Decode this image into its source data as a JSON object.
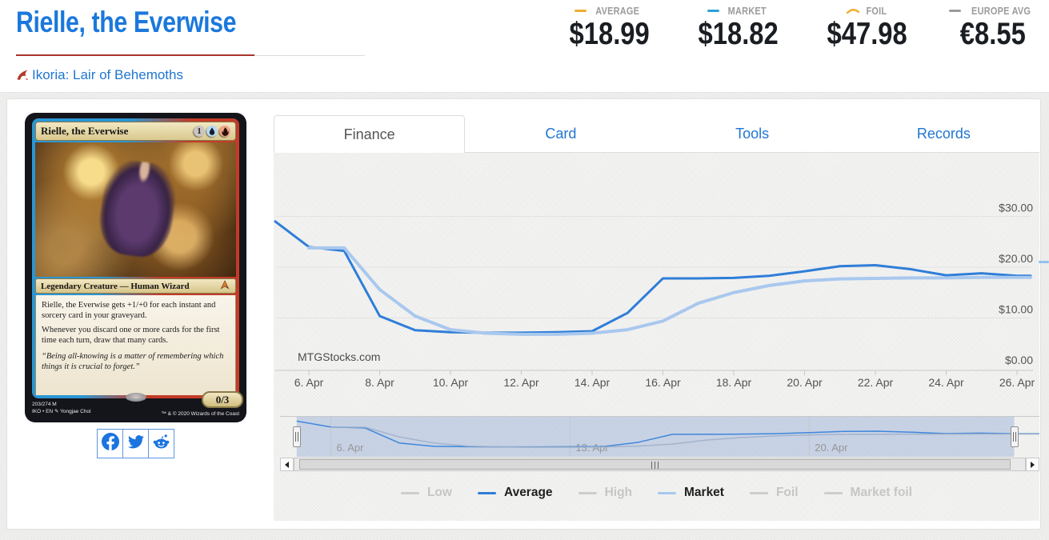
{
  "header": {
    "title": "Rielle, the Everwise",
    "set_link": "Ikoria: Lair of Behemoths"
  },
  "stats": [
    {
      "label": "AVERAGE",
      "value": "$18.99",
      "icon": "dash",
      "color": "#f0ad2d"
    },
    {
      "label": "MARKET",
      "value": "$18.82",
      "icon": "dash",
      "color": "#2e9fd6"
    },
    {
      "label": "FOIL",
      "value": "$47.98",
      "icon": "arc",
      "color": "#f0ad2d"
    },
    {
      "label": "EUROPE AVG",
      "value": "€8.55",
      "icon": "dash",
      "color": "#9b9b9b"
    }
  ],
  "tabs": [
    {
      "label": "Finance",
      "active": true
    },
    {
      "label": "Card",
      "active": false
    },
    {
      "label": "Tools",
      "active": false
    },
    {
      "label": "Records",
      "active": false
    }
  ],
  "card": {
    "name": "Rielle, the Everwise",
    "mana_cost": [
      "1",
      "U",
      "R"
    ],
    "type_line": "Legendary Creature — Human Wizard",
    "rules": [
      "Rielle, the Everwise gets +1/+0 for each instant and sorcery card in your graveyard.",
      "Whenever you discard one or more cards for the first time each turn, draw that many cards."
    ],
    "flavor": "“Being all-knowing is a matter of remembering which things it is crucial to forget.”",
    "power_toughness": "0/3",
    "collector_number": "203/274 M",
    "set_lang": "IKO • EN",
    "artist": "Yongjae Choi",
    "copyright": "™ & © 2020 Wizards of the Coast"
  },
  "social": [
    {
      "id": "facebook"
    },
    {
      "id": "twitter"
    },
    {
      "id": "reddit"
    }
  ],
  "chart_data": {
    "type": "line",
    "title": "",
    "watermark": "MTGStocks.com",
    "x_axis": {
      "unit": "day of April",
      "tick_days": [
        6,
        8,
        10,
        12,
        14,
        16,
        18,
        20,
        22,
        24,
        26
      ],
      "tick_labels": [
        "6. Apr",
        "8. Apr",
        "10. Apr",
        "12. Apr",
        "14. Apr",
        "16. Apr",
        "18. Apr",
        "20. Apr",
        "22. Apr",
        "24. Apr",
        "26. Apr"
      ]
    },
    "y_axis": {
      "tick_values": [
        0,
        10,
        20,
        30
      ],
      "tick_labels": [
        "$0.00",
        "$10.00",
        "$20.00",
        "$30.00"
      ],
      "range": [
        0,
        42
      ]
    },
    "series": [
      {
        "name": "Average",
        "color": "#2f7ed8",
        "width": 3,
        "points": [
          [
            5,
            29
          ],
          [
            6,
            24
          ],
          [
            7,
            23.2
          ],
          [
            8,
            10.4
          ],
          [
            9,
            7.6
          ],
          [
            10,
            7.2
          ],
          [
            11,
            7.1
          ],
          [
            12,
            7.1
          ],
          [
            13,
            7.2
          ],
          [
            14,
            7.4
          ],
          [
            15,
            11
          ],
          [
            16,
            17.8
          ],
          [
            17,
            17.8
          ],
          [
            18,
            17.9
          ],
          [
            19,
            18.3
          ],
          [
            20,
            19.2
          ],
          [
            21,
            20.2
          ],
          [
            22,
            20.4
          ],
          [
            23,
            19.6
          ],
          [
            24,
            18.4
          ],
          [
            25,
            18.8
          ],
          [
            26,
            18.3
          ]
        ]
      },
      {
        "name": "Market",
        "color": "#a9c8ee",
        "width": 4,
        "points": [
          [
            6,
            23.8
          ],
          [
            7,
            23.8
          ],
          [
            8,
            15.6
          ],
          [
            9,
            10.4
          ],
          [
            10,
            7.7
          ],
          [
            11,
            7
          ],
          [
            12,
            6.8
          ],
          [
            13,
            6.8
          ],
          [
            14,
            7
          ],
          [
            15,
            7.7
          ],
          [
            16,
            9.4
          ],
          [
            17,
            12.9
          ],
          [
            18,
            15
          ],
          [
            19,
            16.4
          ],
          [
            20,
            17.3
          ],
          [
            21,
            17.7
          ],
          [
            22,
            17.8
          ],
          [
            23,
            17.9
          ],
          [
            24,
            17.9
          ],
          [
            25,
            18
          ],
          [
            26,
            18
          ]
        ]
      }
    ],
    "navigator": {
      "tick_days": [
        6,
        13,
        20
      ],
      "tick_labels": [
        "6. Apr",
        "13. Apr",
        "20. Apr"
      ],
      "selected_range_days": [
        5,
        26
      ]
    }
  },
  "legend": [
    {
      "label": "Low",
      "active": false,
      "color": "#cdcdcd"
    },
    {
      "label": "Average",
      "active": true,
      "color": "#2f7ed8"
    },
    {
      "label": "High",
      "active": false,
      "color": "#cdcdcd"
    },
    {
      "label": "Market",
      "active": true,
      "color": "#a9c8ee"
    },
    {
      "label": "Foil",
      "active": false,
      "color": "#cdcdcd"
    },
    {
      "label": "Market foil",
      "active": false,
      "color": "#cdcdcd"
    }
  ]
}
